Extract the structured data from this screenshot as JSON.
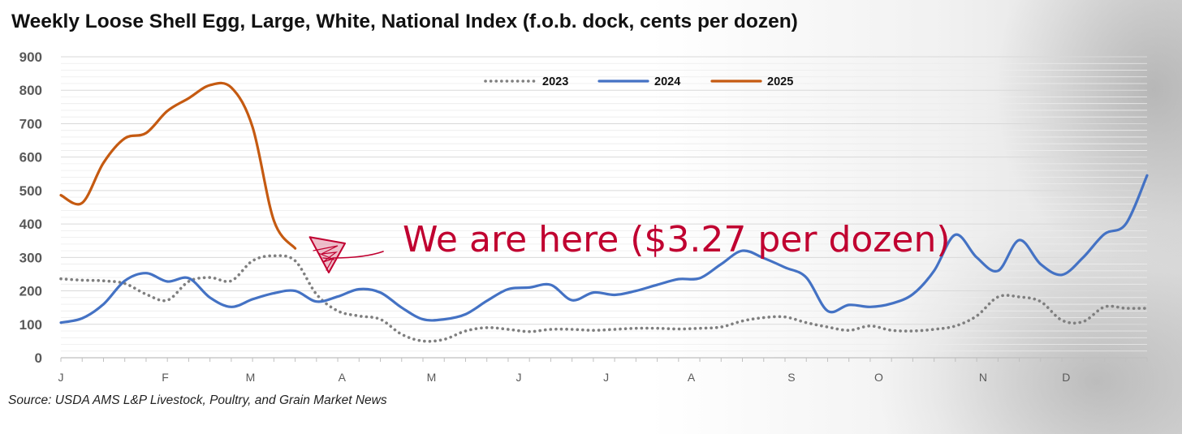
{
  "colors": {
    "series_2023": "#7f7f7f",
    "series_2024": "#4472c4",
    "series_2025": "#c55a11",
    "annotation": "#c00030",
    "axis_text": "#595959",
    "gridline": "#d9d9d9"
  },
  "chart_data": {
    "type": "line",
    "title": "Weekly Loose Shell Egg, Large, White, National Index (f.o.b. dock, cents per dozen)",
    "source": "Source: USDA AMS L&P Livestock, Poultry, and Grain Market News",
    "ylim": [
      0,
      900
    ],
    "yticks": [
      "0",
      "100",
      "200",
      "300",
      "400",
      "500",
      "600",
      "700",
      "800",
      "900"
    ],
    "xlim": [
      1,
      52
    ],
    "month_labels": [
      {
        "label": "J",
        "week": 1
      },
      {
        "label": "F",
        "week": 5.9
      },
      {
        "label": "M",
        "week": 9.9
      },
      {
        "label": "A",
        "week": 14.2
      },
      {
        "label": "M",
        "week": 18.4
      },
      {
        "label": "J",
        "week": 22.5
      },
      {
        "label": "J",
        "week": 26.6
      },
      {
        "label": "A",
        "week": 30.6
      },
      {
        "label": "S",
        "week": 35.3
      },
      {
        "label": "O",
        "week": 39.4
      },
      {
        "label": "N",
        "week": 44.3
      },
      {
        "label": "D",
        "week": 48.2
      }
    ],
    "grid": true,
    "legend_position": "top-center",
    "series": [
      {
        "name": "2023",
        "style": "dotted",
        "values": [
          236,
          232,
          230,
          222,
          190,
          172,
          228,
          240,
          230,
          290,
          305,
          290,
          190,
          140,
          125,
          115,
          70,
          50,
          55,
          80,
          90,
          85,
          78,
          85,
          85,
          82,
          85,
          88,
          88,
          86,
          88,
          92,
          110,
          120,
          122,
          105,
          92,
          82,
          95,
          82,
          80,
          85,
          95,
          125,
          182,
          182,
          168,
          112,
          108,
          152,
          148,
          148
        ]
      },
      {
        "name": "2024",
        "style": "solid",
        "values": [
          105,
          118,
          160,
          230,
          253,
          228,
          238,
          180,
          152,
          175,
          193,
          200,
          168,
          183,
          205,
          195,
          150,
          115,
          115,
          130,
          170,
          205,
          210,
          218,
          172,
          195,
          188,
          200,
          218,
          235,
          238,
          280,
          320,
          298,
          270,
          240,
          140,
          158,
          152,
          162,
          190,
          260,
          368,
          300,
          260,
          352,
          280,
          248,
          300,
          370,
          400,
          545
        ]
      },
      {
        "name": "2025",
        "style": "solid",
        "values": [
          486,
          463,
          583,
          656,
          672,
          738,
          776,
          815,
          808,
          690,
          410,
          327
        ]
      }
    ],
    "annotation": {
      "text": "We are here ($3.27 per dozen)",
      "points_to": {
        "week": 12,
        "value": 327
      }
    }
  }
}
